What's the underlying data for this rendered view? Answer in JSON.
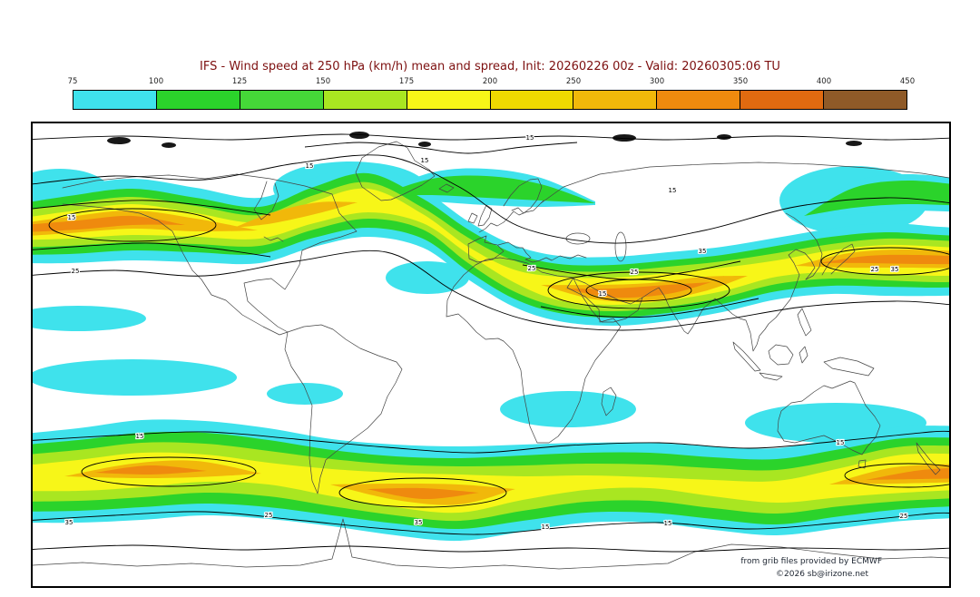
{
  "title": "IFS - Wind speed at 250 hPa (km/h) mean and spread, Init: 20260226 00z - Valid: 20260305:06 TU",
  "colors": {
    "title": "#7d1010",
    "contour": "#000000",
    "coastline": "#444444"
  },
  "colorbar": {
    "tick_labels": [
      "75",
      "100",
      "125",
      "150",
      "175",
      "200",
      "250",
      "300",
      "350",
      "400",
      "450"
    ],
    "segment_colors": [
      "#3FE2EC",
      "#2BD32B",
      "#45D838",
      "#A9E621",
      "#F7F618",
      "#EFD900",
      "#F1B80A",
      "#EF8A0E",
      "#E06A10",
      "#8F5A28"
    ]
  },
  "map": {
    "spread_labels": {
      "l15": "15",
      "l25": "25",
      "l35": "35"
    }
  },
  "attribution": {
    "line1": "from grib files provided by ECMWF",
    "line2": "©2026 sb@irizone.net"
  },
  "chart_data": {
    "type": "heatmap",
    "subtype": "filled-contour-world-map",
    "title": "IFS - Wind speed at 250 hPa (km/h) mean and spread, Init: 20260226 00z - Valid: 20260305:06 TU",
    "model": "IFS",
    "variable": "Wind speed at 250 hPa",
    "units": "km/h",
    "statistic": "mean (filled colors) and spread (black contours)",
    "init": "20260226 00z",
    "valid": "20260305:06 TU",
    "projection": "equirectangular world map, centered on 0° longitude",
    "fill_level_boundaries": [
      75,
      100,
      125,
      150,
      175,
      200,
      250,
      300,
      350,
      400,
      450
    ],
    "fill_colors": [
      "#3FE2EC",
      "#2BD32B",
      "#45D838",
      "#A9E621",
      "#F7F618",
      "#EFD900",
      "#F1B80A",
      "#EF8A0E",
      "#E06A10",
      "#8F5A28"
    ],
    "spread_contour_labeled_values": [
      15,
      25,
      35
    ],
    "legend_position": "top, horizontal colorbar",
    "features": [
      {
        "name": "northern-jet-stream",
        "description": "Wavy band of 100-300 km/h winds across northern mid-latitudes; orange cores (~250-350 km/h) over the North Pacific, western North America, the Middle East / southern Asia and the north-west Pacific"
      },
      {
        "name": "southern-jet-stream",
        "description": "Continuous band of 100-300 km/h winds across southern mid-latitudes with orange cores over the South Pacific, South Atlantic and south of Australia / New Zealand"
      },
      {
        "name": "equatorial-patches",
        "description": "Isolated 75-100 km/h cyan patches near the equator"
      },
      {
        "name": "spread-contours",
        "description": "Black contour lines of ensemble spread labeled 15, 25 and 35, roughly following both jet bands and the polar regions"
      }
    ]
  }
}
